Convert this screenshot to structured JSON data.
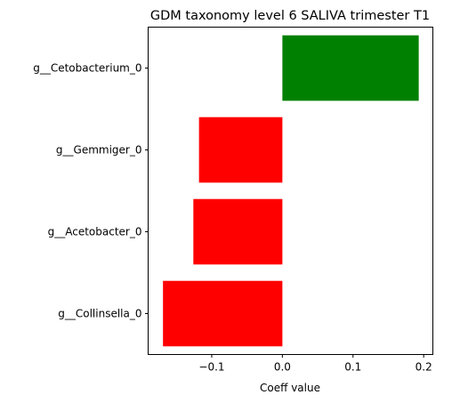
{
  "chart_data": {
    "type": "bar",
    "orientation": "horizontal",
    "title": "GDM taxonomy level 6 SALIVA trimester T1",
    "xlabel": "Coeff value",
    "ylabel": "",
    "categories": [
      "g__Cetobacterium_0",
      "g__Gemmiger_0",
      "g__Acetobacter_0",
      "g__Collinsella_0"
    ],
    "values": [
      0.193,
      -0.118,
      -0.126,
      -0.169
    ],
    "bar_colors": [
      "#008000",
      "#ff0000",
      "#ff0000",
      "#ff0000"
    ],
    "xlim": [
      -0.19,
      0.213
    ],
    "xticks": [
      -0.1,
      0.0,
      0.1,
      0.2
    ],
    "xtick_labels": [
      "−0.1",
      "0.0",
      "0.1",
      "0.2"
    ],
    "grid": false,
    "legend": "none"
  }
}
